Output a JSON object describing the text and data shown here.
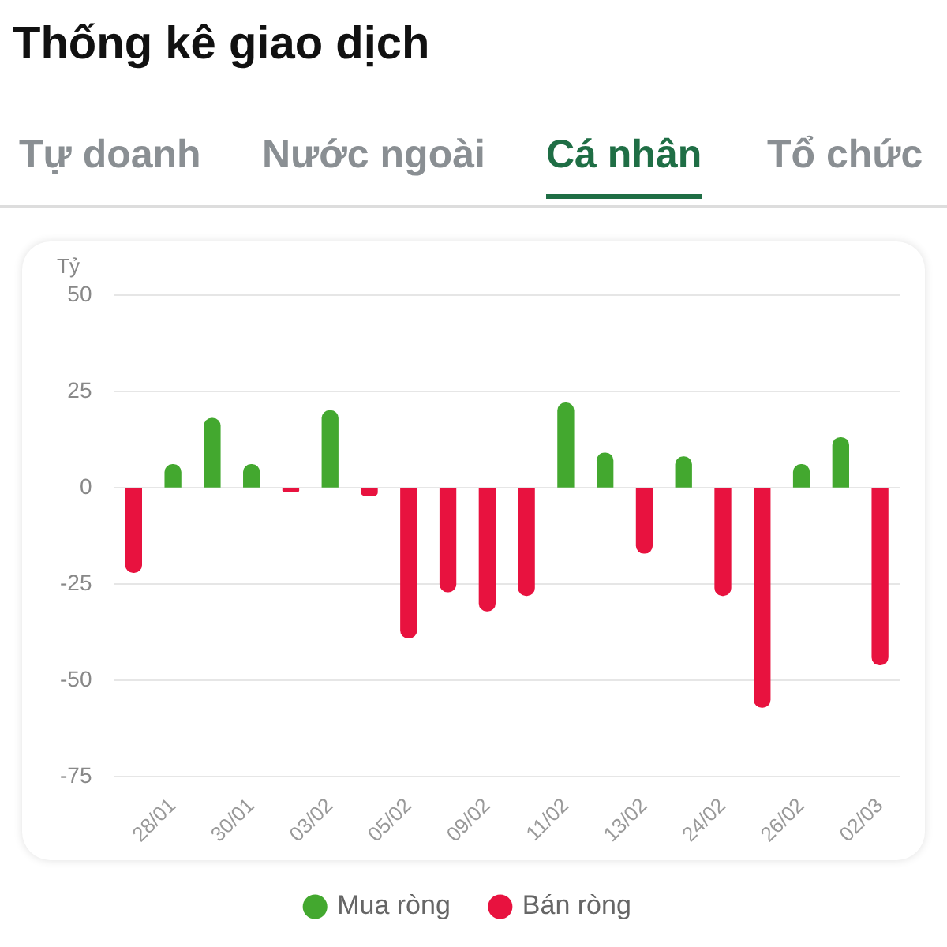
{
  "chart_data": {
    "type": "bar",
    "title": "Thống kê giao dịch",
    "annotations": [
      "Tự doanh",
      "Nước ngoài",
      "Cá nhân",
      "Tổ chức"
    ],
    "ylabel": "Tỷ",
    "categories": [
      null,
      "28/01",
      null,
      "30/01",
      null,
      "03/02",
      null,
      "05/02",
      null,
      "09/02",
      null,
      "11/02",
      null,
      "13/02",
      null,
      "24/02",
      null,
      "26/02",
      null,
      "02/03"
    ],
    "series": [
      {
        "name": "Mua ròng",
        "color": "#43a82f",
        "values": [
          null,
          6,
          18,
          6,
          null,
          20,
          null,
          null,
          null,
          null,
          null,
          22,
          9,
          null,
          8,
          null,
          null,
          6,
          13,
          null
        ]
      },
      {
        "name": "Bán ròng",
        "color": "#e8123f",
        "values": [
          -22,
          null,
          null,
          null,
          -1,
          null,
          -2,
          -39,
          -27,
          -32,
          -28,
          null,
          null,
          -17,
          null,
          -28,
          -57,
          null,
          null,
          -46
        ]
      }
    ],
    "stacked": true,
    "ylim": [
      -75,
      50
    ],
    "yticks": [
      -75,
      -50,
      -25,
      0,
      25,
      50
    ],
    "grid": "y",
    "legend": "bottom"
  }
}
